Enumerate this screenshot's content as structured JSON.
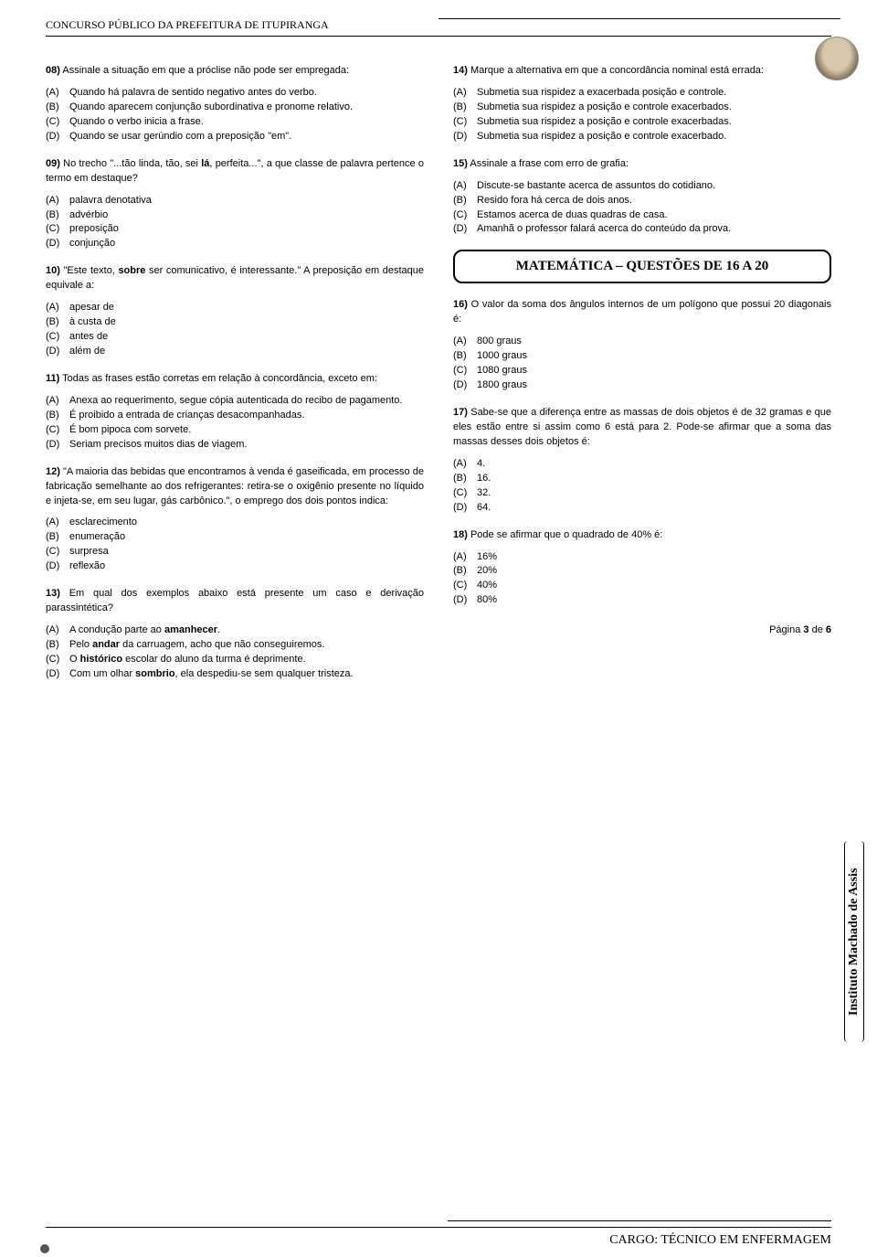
{
  "header": {
    "title": "CONCURSO PÚBLICO DA PREFEITURA DE ITUPIRANGA"
  },
  "section_math": "MATEMÁTICA – QUESTÕES DE 16 A 20",
  "side_label": "Instituto Machado de Assis",
  "page_label_prefix": "Página ",
  "page_num": "3",
  "page_label_suffix": " de ",
  "page_total": "6",
  "footer_label": "CARGO: TÉCNICO EM ENFERMAGEM",
  "q08": {
    "num": "08)",
    "stem": " Assinale a situação em que a próclise não pode ser empregada:",
    "a": "Quando há palavra de sentido negativo antes do verbo.",
    "b": "Quando aparecem conjunção subordinativa e pronome relativo.",
    "c": "Quando o verbo inicia a frase.",
    "d": "Quando se usar gerúndio com a preposição \"em\"."
  },
  "q09": {
    "num": "09)",
    "stem_a": " No trecho \"...tão linda, tão, sei ",
    "stem_bold": "lá",
    "stem_b": ", perfeita...\", a que classe de palavra pertence o termo em destaque?",
    "a": "palavra denotativa",
    "b": "advérbio",
    "c": "preposição",
    "d": "conjunção"
  },
  "q10": {
    "num": "10)",
    "stem_a": " \"Este texto, ",
    "stem_bold": "sobre",
    "stem_b": " ser comunicativo, é interessante.\" A preposição em destaque equivale a:",
    "a": "apesar de",
    "b": "à custa de",
    "c": "antes de",
    "d": "além de"
  },
  "q11": {
    "num": "11)",
    "stem": " Todas as frases estão corretas em relação à concordância, exceto em:",
    "a": "Anexa ao requerimento, segue cópia autenticada do recibo de pagamento.",
    "b": "É proibido a entrada de crianças desacompanhadas.",
    "c": "É bom pipoca com sorvete.",
    "d": "Seriam precisos muitos dias de viagem."
  },
  "q12": {
    "num": "12)",
    "stem": " \"A maioria das bebidas que encontramos à venda é gaseificada, em processo de fabricação semelhante ao dos refrigerantes: retira-se o oxigênio presente no líquido e injeta-se, em seu lugar, gás carbônico.\", o emprego dos dois pontos indica:",
    "a": "esclarecimento",
    "b": "enumeração",
    "c": "surpresa",
    "d": "reflexão"
  },
  "q13": {
    "num": "13)",
    "stem": " Em qual dos exemplos abaixo está presente um caso e derivação parassintética?",
    "a_a": "A condução parte ao ",
    "a_b": "amanhecer",
    "a_c": ".",
    "b_a": "Pelo ",
    "b_b": "andar",
    "b_c": " da carruagem, acho que não conseguiremos.",
    "c_a": "O ",
    "c_b": "histórico",
    "c_c": " escolar do aluno da turma é deprimente.",
    "d_a": "Com um olhar ",
    "d_b": "sombrio",
    "d_c": ", ela despediu-se sem qualquer tristeza."
  },
  "q14": {
    "num": "14)",
    "stem": " Marque a alternativa em que a concordância nominal está errada:",
    "a": "Submetia sua rispidez a exacerbada posição e controle.",
    "b": "Submetia sua rispidez a posição e controle exacerbados.",
    "c": "Submetia sua rispidez a posição e controle exacerbadas.",
    "d": "Submetia sua rispidez a posição e controle exacerbado."
  },
  "q15": {
    "num": "15)",
    "stem": " Assinale a frase com erro de grafia:",
    "a": "Discute-se bastante acerca de assuntos do cotidiano.",
    "b": "Resido fora há cerca de dois anos.",
    "c": "Estamos acerca de duas quadras de casa.",
    "d": "Amanhã o professor falará acerca do conteúdo da prova."
  },
  "q16": {
    "num": "16)",
    "stem": " O valor da soma dos ângulos internos de um polígono que possui 20 diagonais é:",
    "a": "800 graus",
    "b": "1000 graus",
    "c": "1080 graus",
    "d": "1800 graus"
  },
  "q17": {
    "num": "17)",
    "stem": " Sabe-se que a diferença entre as massas de dois objetos é de 32 gramas e que eles estão entre si assim como 6 está para 2. Pode-se afirmar que a soma das massas desses dois objetos é:",
    "a": "4.",
    "b": "16.",
    "c": "32.",
    "d": "64."
  },
  "q18": {
    "num": "18)",
    "stem": " Pode se afirmar que o quadrado de 40% é:",
    "a": "16%",
    "b": "20%",
    "c": "40%",
    "d": "80%"
  },
  "labels": {
    "a": "(A)",
    "b": "(B)",
    "c": "(C)",
    "d": "(D)"
  }
}
